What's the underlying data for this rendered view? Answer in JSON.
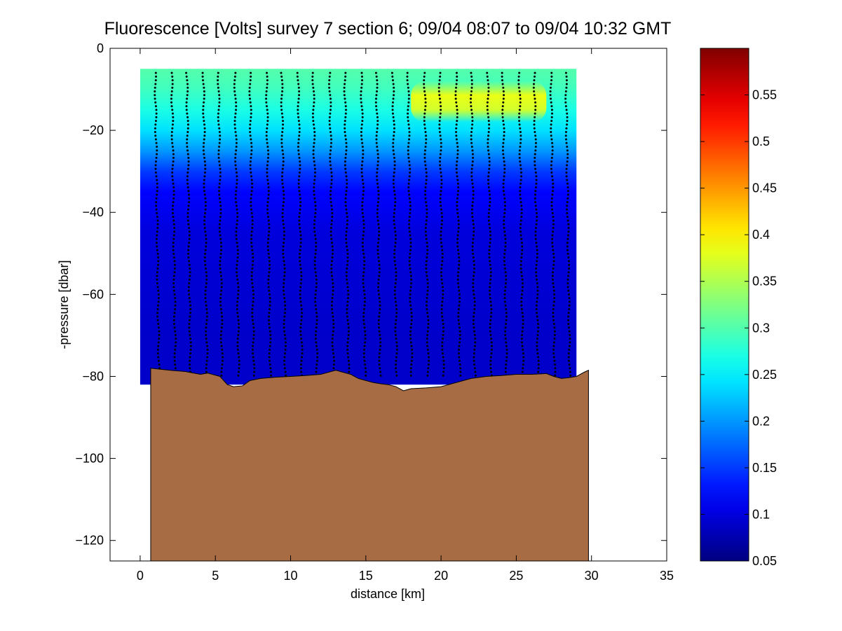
{
  "chart_data": {
    "type": "heatmap",
    "title": "Fluorescence [Volts] survey 7 section 6; 09/04 08:07 to 09/04 10:32 GMT",
    "xlabel": "distance [km]",
    "ylabel": "-pressure [dbar]",
    "xlim": [
      -2,
      35
    ],
    "ylim": [
      -125,
      0
    ],
    "x_ticks": [
      "0",
      "5",
      "10",
      "15",
      "20",
      "25",
      "30",
      "35"
    ],
    "y_ticks": [
      "0",
      "−20",
      "−40",
      "−60",
      "−80",
      "−100",
      "−120"
    ],
    "colorbar": {
      "range": [
        0.05,
        0.6
      ],
      "ticks": [
        "0.05",
        "0.1",
        "0.15",
        "0.2",
        "0.25",
        "0.3",
        "0.35",
        "0.4",
        "0.45",
        "0.5",
        "0.55"
      ],
      "colormap": "jet"
    },
    "field_extent": {
      "x": [
        0,
        29
      ],
      "y": [
        -82,
        -5
      ]
    },
    "surface_layer": {
      "depth_values": [
        -6,
        -10,
        -15,
        -20,
        -25,
        -30,
        -35,
        -45,
        -70
      ],
      "typical_values": [
        0.3,
        0.29,
        0.27,
        0.24,
        0.2,
        0.15,
        0.12,
        0.1,
        0.09
      ]
    },
    "high_patch": {
      "x": [
        18,
        27
      ],
      "depth": [
        -8,
        -18
      ],
      "value": 0.4
    },
    "glider_profile_distances_km": [
      1.0,
      2.1,
      3.1,
      4.2,
      5.2,
      6.3,
      7.3,
      8.4,
      9.4,
      10.5,
      11.5,
      12.6,
      13.6,
      14.7,
      15.7,
      16.8,
      17.8,
      18.9,
      19.9,
      21.0,
      22.0,
      23.1,
      24.1,
      25.2,
      26.2,
      27.3,
      28.3
    ],
    "bathymetry": {
      "x": [
        0.7,
        2,
        3,
        4,
        4.5,
        5.3,
        5.8,
        6.2,
        6.8,
        7.3,
        8,
        9,
        10,
        11,
        12,
        12.5,
        13,
        13.5,
        14,
        14.5,
        15,
        15.5,
        16,
        16.5,
        17,
        17.5,
        18,
        19,
        20,
        21,
        22,
        23,
        24,
        25,
        26,
        27,
        27.5,
        28,
        28.5,
        29,
        29.5,
        29.8
      ],
      "y": [
        -78,
        -78.5,
        -78.8,
        -79.5,
        -79.2,
        -80,
        -82,
        -82.5,
        -82.3,
        -81,
        -80.5,
        -80.2,
        -80,
        -79.8,
        -79.5,
        -79,
        -78.5,
        -79,
        -79.5,
        -80.5,
        -81,
        -81.5,
        -81.8,
        -82,
        -82.5,
        -83.5,
        -83,
        -82.8,
        -82.5,
        -81.5,
        -80.5,
        -80,
        -79.8,
        -79.5,
        -79.5,
        -79.3,
        -80,
        -80.5,
        -80.3,
        -80,
        -79,
        -78.5
      ],
      "color": "#a86c45"
    }
  }
}
